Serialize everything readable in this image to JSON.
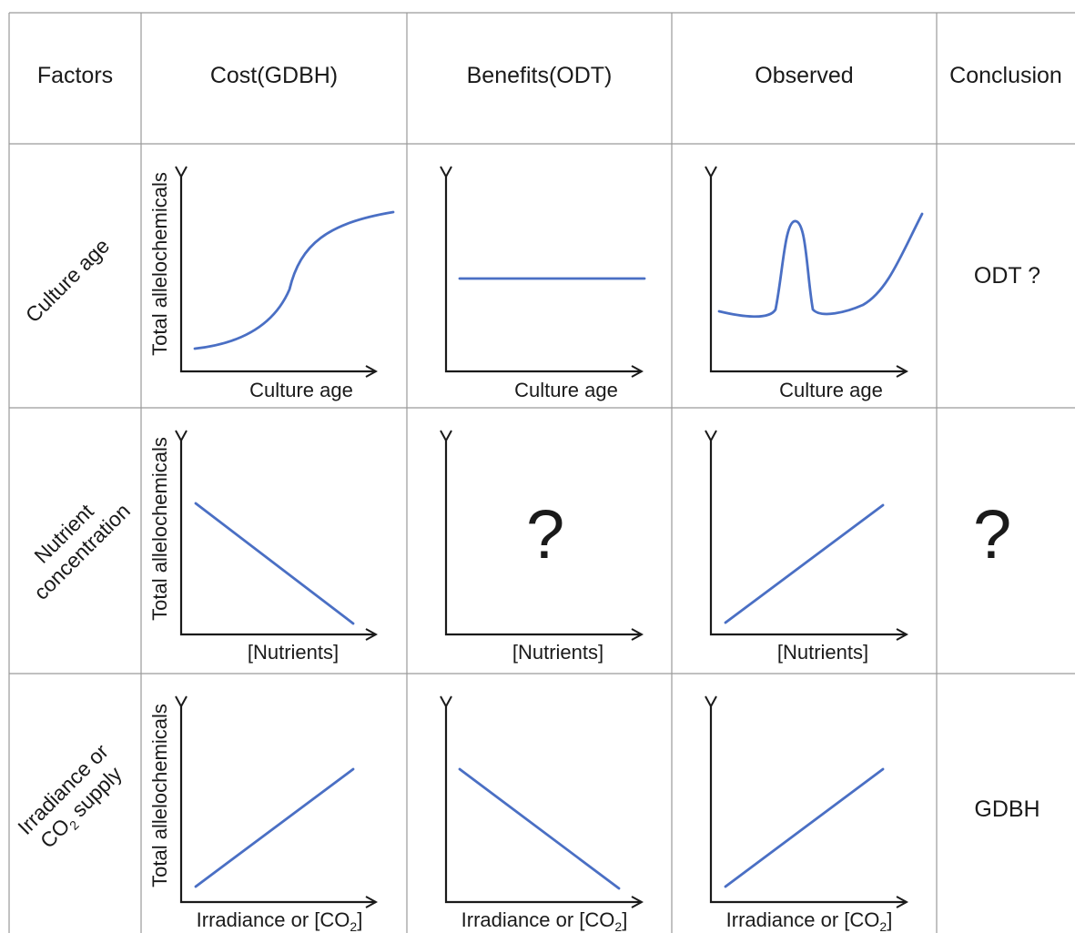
{
  "headers": {
    "factors": "Factors",
    "cost": "Cost(GDBH)",
    "benefits": "Benefits(ODT)",
    "observed": "Observed",
    "conclusion": "Conclusion"
  },
  "rows": [
    {
      "factor_lines": [
        "Culture age"
      ],
      "y_axis_label": "Total allelochemicals",
      "x_axis_label": "Culture age",
      "conclusion": "ODT ?"
    },
    {
      "factor_lines": [
        "Nutrient",
        "concentration"
      ],
      "y_axis_label": "Total allelochemicals",
      "x_axis_label": "[Nutrients]",
      "benefits_mark": "?",
      "conclusion": "?"
    },
    {
      "factor_lines": [
        "Irradiance or",
        "CO2 supply"
      ],
      "y_axis_label": "Total allelochemicals",
      "x_axis_label": "Irradiance or [CO2]",
      "conclusion": "GDBH"
    }
  ],
  "colors": {
    "curve": "#4a6fc4",
    "axis": "#1a1a1a",
    "grid": "#9a9a9a"
  }
}
